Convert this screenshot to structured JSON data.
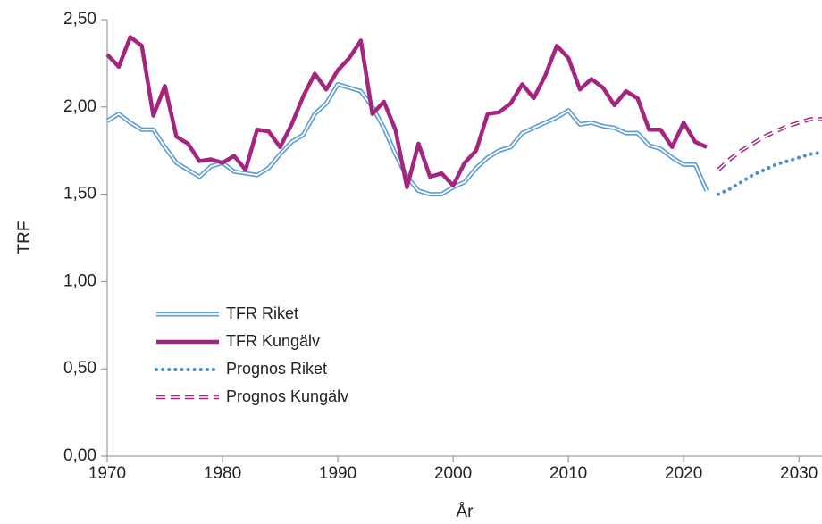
{
  "chart_data": {
    "type": "line",
    "y_label": "TRF",
    "x_label": "År",
    "xlim": [
      1970,
      2032
    ],
    "xticks": [
      1970,
      1980,
      1990,
      2000,
      2010,
      2020,
      2030
    ],
    "ylim": [
      0,
      2.5
    ],
    "yticks": [
      {
        "value": 0,
        "label": "0,00"
      },
      {
        "value": 0.5,
        "label": "0,50"
      },
      {
        "value": 1,
        "label": "1,00"
      },
      {
        "value": 1.5,
        "label": "1,50"
      },
      {
        "value": 2,
        "label": "2,00"
      },
      {
        "value": 2.5,
        "label": "2,50"
      }
    ],
    "grid": false,
    "legend": "left",
    "series": [
      {
        "name": "TFR Riket",
        "color": "#5b9bd5",
        "style": "double",
        "x": [
          1970,
          1971,
          1972,
          1973,
          1974,
          1975,
          1976,
          1977,
          1978,
          1979,
          1980,
          1981,
          1982,
          1983,
          1984,
          1985,
          1986,
          1987,
          1988,
          1989,
          1990,
          1991,
          1992,
          1993,
          1994,
          1995,
          1996,
          1997,
          1998,
          1999,
          2000,
          2001,
          2002,
          2003,
          2004,
          2005,
          2006,
          2007,
          2008,
          2009,
          2010,
          2011,
          2012,
          2013,
          2014,
          2015,
          2016,
          2017,
          2018,
          2019,
          2020,
          2021,
          2022
        ],
        "values": [
          1.92,
          1.96,
          1.91,
          1.87,
          1.87,
          1.77,
          1.68,
          1.64,
          1.6,
          1.66,
          1.68,
          1.63,
          1.62,
          1.61,
          1.65,
          1.73,
          1.8,
          1.84,
          1.96,
          2.02,
          2.13,
          2.11,
          2.09,
          2.0,
          1.88,
          1.73,
          1.6,
          1.52,
          1.5,
          1.5,
          1.54,
          1.57,
          1.65,
          1.71,
          1.75,
          1.77,
          1.85,
          1.88,
          1.91,
          1.94,
          1.98,
          1.9,
          1.91,
          1.89,
          1.88,
          1.85,
          1.85,
          1.78,
          1.76,
          1.71,
          1.67,
          1.67,
          1.52
        ]
      },
      {
        "name": "TFR Kungälv",
        "color": "#a3257f",
        "style": "solid",
        "x": [
          1970,
          1971,
          1972,
          1973,
          1974,
          1975,
          1976,
          1977,
          1978,
          1979,
          1980,
          1981,
          1982,
          1983,
          1984,
          1985,
          1986,
          1987,
          1988,
          1989,
          1990,
          1991,
          1992,
          1993,
          1994,
          1995,
          1996,
          1997,
          1998,
          1999,
          2000,
          2001,
          2002,
          2003,
          2004,
          2005,
          2006,
          2007,
          2008,
          2009,
          2010,
          2011,
          2012,
          2013,
          2014,
          2015,
          2016,
          2017,
          2018,
          2019,
          2020,
          2021,
          2022
        ],
        "values": [
          2.3,
          2.23,
          2.4,
          2.35,
          1.95,
          2.12,
          1.83,
          1.79,
          1.69,
          1.7,
          1.68,
          1.72,
          1.64,
          1.87,
          1.86,
          1.77,
          1.9,
          2.06,
          2.19,
          2.1,
          2.21,
          2.28,
          2.38,
          1.96,
          2.03,
          1.87,
          1.54,
          1.79,
          1.6,
          1.62,
          1.55,
          1.68,
          1.75,
          1.96,
          1.97,
          2.02,
          2.13,
          2.05,
          2.18,
          2.35,
          2.28,
          2.1,
          2.16,
          2.11,
          2.01,
          2.09,
          2.05,
          1.87,
          1.87,
          1.77,
          1.91,
          1.8,
          1.77
        ]
      },
      {
        "name": "Prognos Riket",
        "color": "#4a90d0",
        "style": "dotted",
        "x": [
          2023,
          2024,
          2025,
          2026,
          2027,
          2028,
          2029,
          2030,
          2031,
          2032
        ],
        "values": [
          1.5,
          1.53,
          1.57,
          1.61,
          1.64,
          1.67,
          1.69,
          1.71,
          1.73,
          1.74
        ]
      },
      {
        "name": "Prognos Kungälv",
        "color": "#a3257f",
        "style": "dashed-double",
        "x": [
          2023,
          2024,
          2025,
          2026,
          2027,
          2028,
          2029,
          2030,
          2031,
          2032
        ],
        "values": [
          1.64,
          1.7,
          1.75,
          1.79,
          1.83,
          1.86,
          1.89,
          1.91,
          1.93,
          1.93
        ]
      }
    ]
  }
}
